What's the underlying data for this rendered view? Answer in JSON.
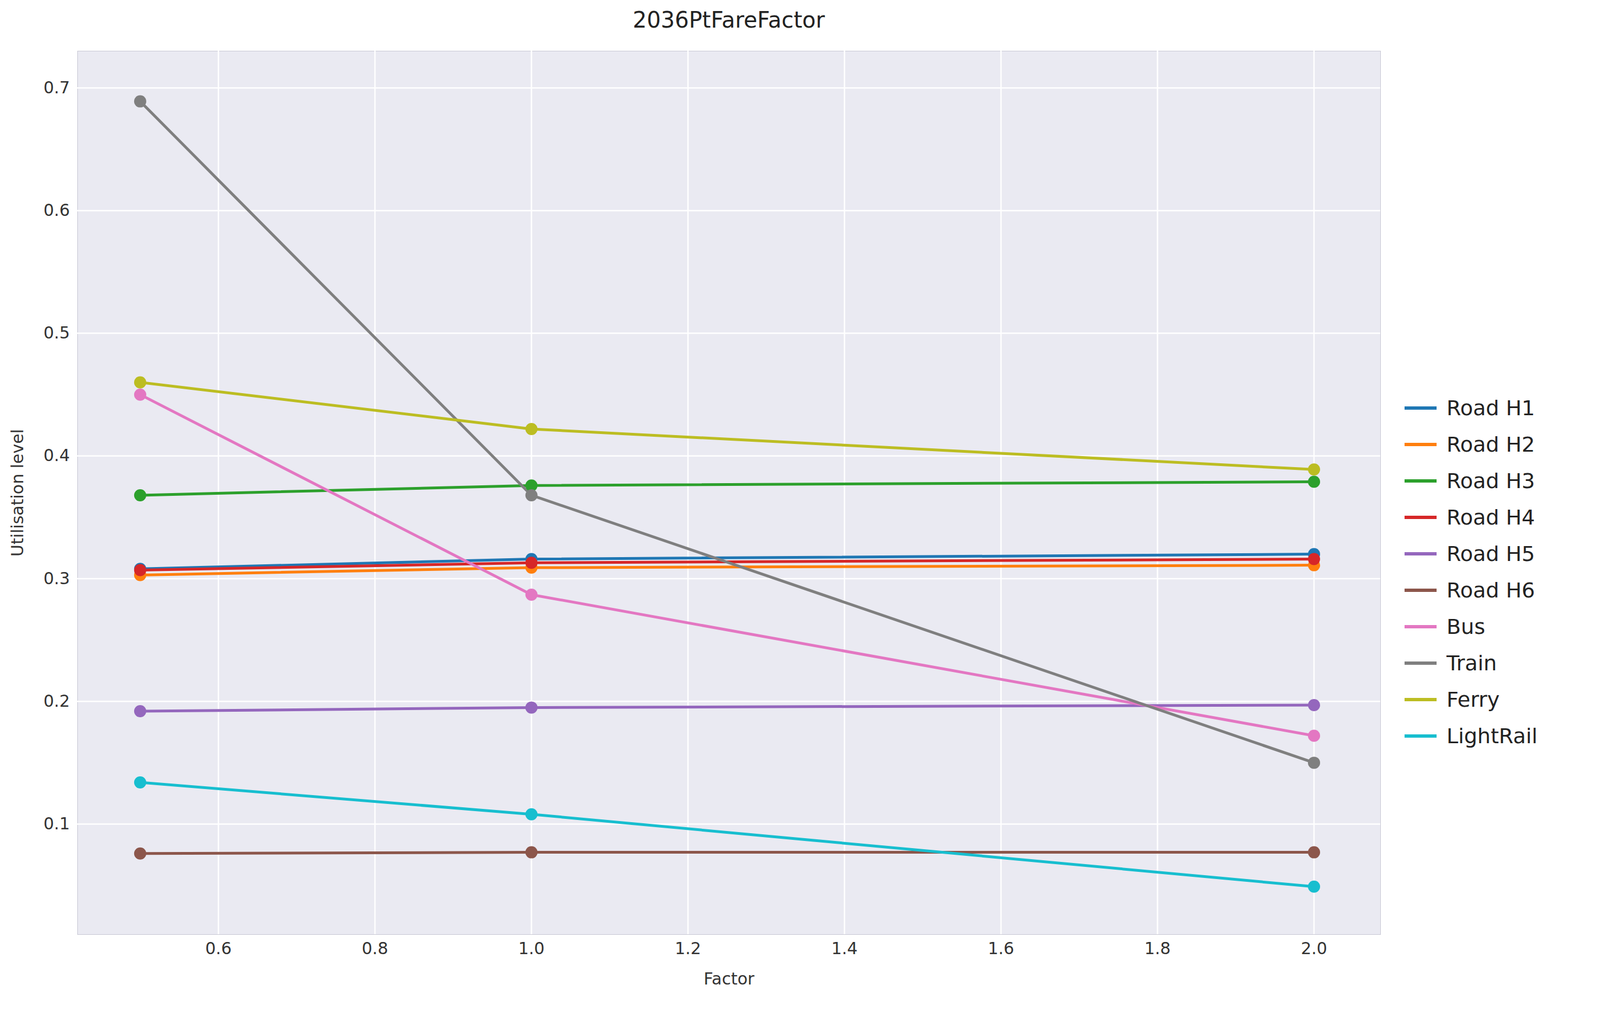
{
  "chart_data": {
    "type": "line",
    "title": "2036PtFareFactor",
    "x_label": "Factor",
    "y_label": "Utilisation level",
    "x": [
      0.5,
      1.0,
      2.0
    ],
    "series": [
      {
        "name": "Road H1",
        "color": "#1f77b4",
        "values": [
          0.308,
          0.316,
          0.32
        ]
      },
      {
        "name": "Road H2",
        "color": "#ff7f0e",
        "values": [
          0.303,
          0.309,
          0.311
        ]
      },
      {
        "name": "Road H3",
        "color": "#2ca02c",
        "values": [
          0.368,
          0.376,
          0.379
        ]
      },
      {
        "name": "Road H4",
        "color": "#d62728",
        "values": [
          0.307,
          0.313,
          0.316
        ]
      },
      {
        "name": "Road H5",
        "color": "#9467bd",
        "values": [
          0.192,
          0.195,
          0.197
        ]
      },
      {
        "name": "Road H6",
        "color": "#8c564b",
        "values": [
          0.076,
          0.077,
          0.077
        ]
      },
      {
        "name": "Bus",
        "color": "#e377c2",
        "values": [
          0.45,
          0.287,
          0.172
        ]
      },
      {
        "name": "Train",
        "color": "#7f7f7f",
        "values": [
          0.689,
          0.368,
          0.15
        ]
      },
      {
        "name": "Ferry",
        "color": "#bcbd22",
        "values": [
          0.46,
          0.422,
          0.389
        ]
      },
      {
        "name": "LightRail",
        "color": "#17becf",
        "values": [
          0.134,
          0.108,
          0.049
        ]
      }
    ],
    "xlim": [
      0.42,
      2.085
    ],
    "ylim": [
      0.01,
      0.73
    ],
    "xticks": [
      0.6,
      0.8,
      {
        "value": 1.0,
        "label": "1.0"
      },
      1.2,
      1.4,
      1.6,
      1.8,
      {
        "value": 2.0,
        "label": "2.0"
      }
    ],
    "yticks": [
      0.1,
      0.2,
      0.3,
      0.4,
      0.5,
      0.6,
      0.7
    ],
    "grid": true,
    "legend": "right",
    "marker": "circle",
    "line_style": "solid"
  }
}
